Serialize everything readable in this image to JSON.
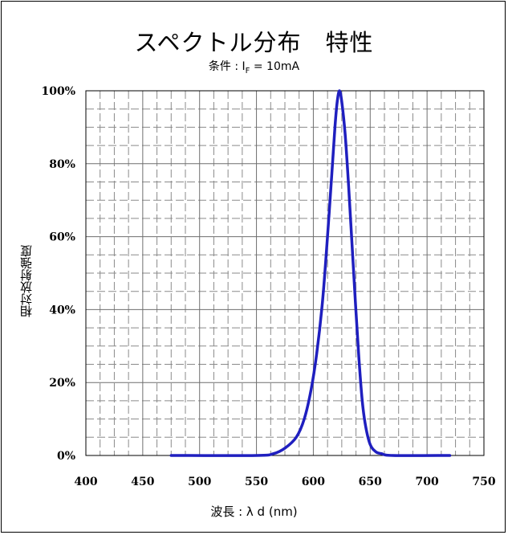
{
  "chart_data": {
    "type": "line",
    "title": "スペクトル分布　特性",
    "subtitle": {
      "prefix": "条件 : ",
      "symbol": "I",
      "subscript": "F",
      "suffix": " = 10mA"
    },
    "xlabel": "波長 : λ d (nm)",
    "ylabel": "相対放射強度",
    "xlim": [
      400,
      750
    ],
    "ylim": [
      0,
      100
    ],
    "x_ticks": [
      "400",
      "450",
      "500",
      "550",
      "600",
      "650",
      "700",
      "750"
    ],
    "y_ticks": [
      "0%",
      "20%",
      "40%",
      "60%",
      "80%",
      "100%"
    ],
    "grid": true,
    "series": [
      {
        "color": "#1f1fbf",
        "x": [
          475,
          550,
          565,
          575,
          585,
          592,
          598,
          603,
          608,
          612,
          616,
          619,
          621,
          623,
          625,
          628,
          631,
          634,
          637,
          640,
          643,
          646,
          650,
          655,
          660,
          670,
          720
        ],
        "y": [
          0,
          0,
          0.5,
          2,
          5,
          10,
          18,
          28,
          42,
          58,
          76,
          90,
          97,
          100,
          97,
          88,
          74,
          58,
          42,
          27,
          15,
          8,
          3,
          1,
          0.5,
          0,
          0
        ]
      }
    ]
  }
}
